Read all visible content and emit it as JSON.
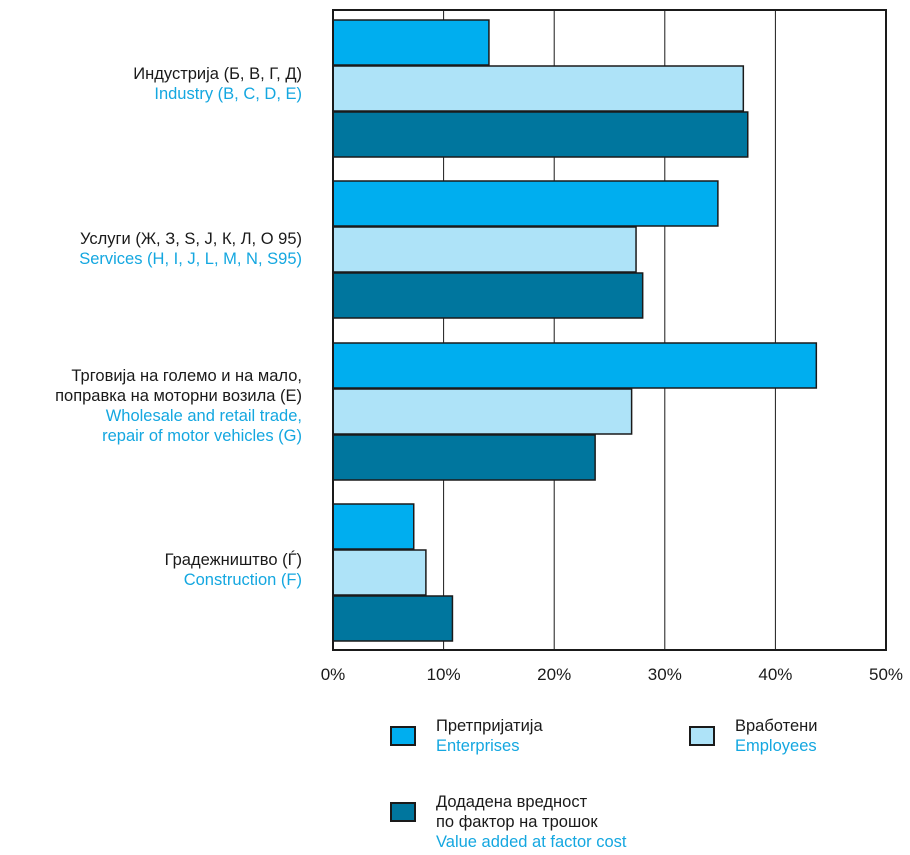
{
  "chart_data": {
    "type": "bar",
    "orientation": "horizontal",
    "categories": [
      {
        "mk": [
          "Индустрија (Б, В, Г, Д)"
        ],
        "en": [
          "Industry (B, C, D, E)"
        ]
      },
      {
        "mk": [
          "Услуги (Ж, З, S, Ј, К, Л, О 95)"
        ],
        "en": [
          "Services (H, I, J, L, M, N, S95)"
        ]
      },
      {
        "mk": [
          "Трговија на големо и на мало,",
          "поправка на моторни возила (Е)"
        ],
        "en": [
          "Wholesale and retail trade,",
          "repair of motor vehicles (G)"
        ]
      },
      {
        "mk": [
          "Градежништво (Ѓ)"
        ],
        "en": [
          "Construction (F)"
        ]
      }
    ],
    "series": [
      {
        "name_mk": "Претпријатија",
        "name_en": "Enterprises",
        "color": "#00aeef",
        "values": [
          14.1,
          34.8,
          43.7,
          7.3
        ]
      },
      {
        "name_mk": "Вработени",
        "name_en": "Employees",
        "color": "#aee3f8",
        "values": [
          37.1,
          27.4,
          27.0,
          8.4
        ]
      },
      {
        "name_mk": "Додадена вредност по фактор на трошок",
        "name_mk_lines": [
          "Додадена вредност",
          "по фактор на трошок"
        ],
        "name_en": "Value added at factor cost",
        "color": "#00769e",
        "values": [
          37.5,
          28.0,
          23.7,
          10.8
        ]
      }
    ],
    "x_ticks": [
      "0%",
      "10%",
      "20%",
      "30%",
      "40%",
      "50%"
    ],
    "xlim": [
      0,
      50
    ],
    "grid": true,
    "legend_position": "bottom"
  }
}
